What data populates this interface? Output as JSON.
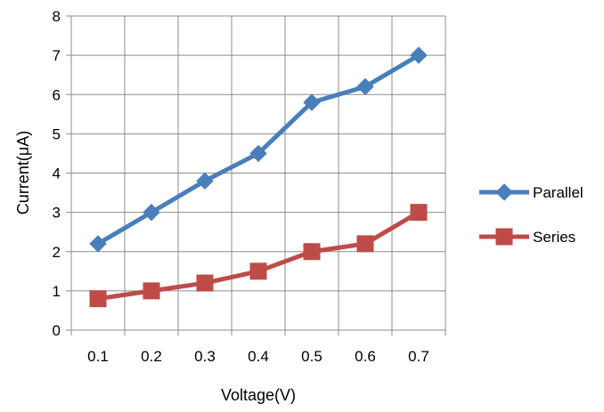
{
  "chart_data": {
    "type": "line",
    "categories": [
      "0.1",
      "0.2",
      "0.3",
      "0.4",
      "0.5",
      "0.6",
      "0.7"
    ],
    "series": [
      {
        "name": "Parallel",
        "values": [
          2.2,
          3.0,
          3.8,
          4.5,
          5.8,
          6.2,
          7.0
        ],
        "color": "#4a7ebb",
        "marker": "diamond"
      },
      {
        "name": "Series",
        "values": [
          0.8,
          1.0,
          1.2,
          1.5,
          2.0,
          2.2,
          3.0
        ],
        "color": "#be4b48",
        "marker": "square"
      }
    ],
    "title": "",
    "xlabel": "Voltage(V)",
    "ylabel": "Current(μA)",
    "ylim": [
      0,
      8
    ],
    "yticks": [
      "0",
      "1",
      "2",
      "3",
      "4",
      "5",
      "6",
      "7",
      "8"
    ],
    "grid": true,
    "legend_position": "right"
  }
}
